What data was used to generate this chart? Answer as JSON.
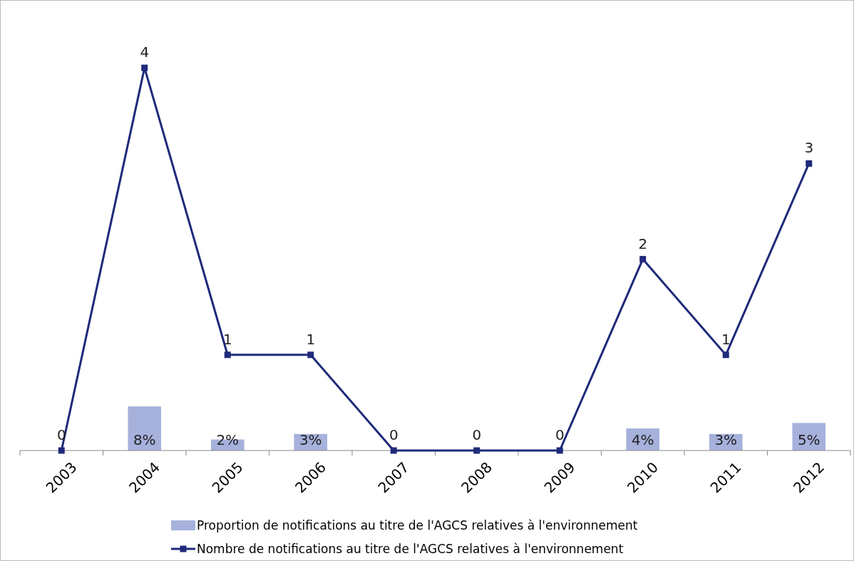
{
  "chart_data": {
    "type": "bar",
    "categories": [
      "2003",
      "2004",
      "2005",
      "2006",
      "2007",
      "2008",
      "2009",
      "2010",
      "2011",
      "2012"
    ],
    "series": [
      {
        "name": "Proportion de notifications au titre de l'AGCS relatives à l'environnement",
        "color": "#a6b1dc",
        "axis": "y2",
        "values": [
          null,
          8,
          2,
          3,
          null,
          null,
          null,
          4,
          3,
          5
        ],
        "value_labels": [
          null,
          "8%",
          "2%",
          "3%",
          null,
          null,
          null,
          "4%",
          "3%",
          "5%"
        ]
      },
      {
        "name": "Nombre de notifications au titre de l'AGCS relatives à l'environnement",
        "type": "line",
        "color": "#1f2a7a",
        "marker": "square",
        "values": [
          0,
          4,
          1,
          1,
          0,
          0,
          0,
          2,
          1,
          3
        ],
        "value_labels": [
          "0",
          "4",
          "1",
          "1",
          "0",
          "0",
          "0",
          "2",
          "1",
          "3"
        ]
      }
    ],
    "tick_labels": "x",
    "legend": "bottom"
  }
}
